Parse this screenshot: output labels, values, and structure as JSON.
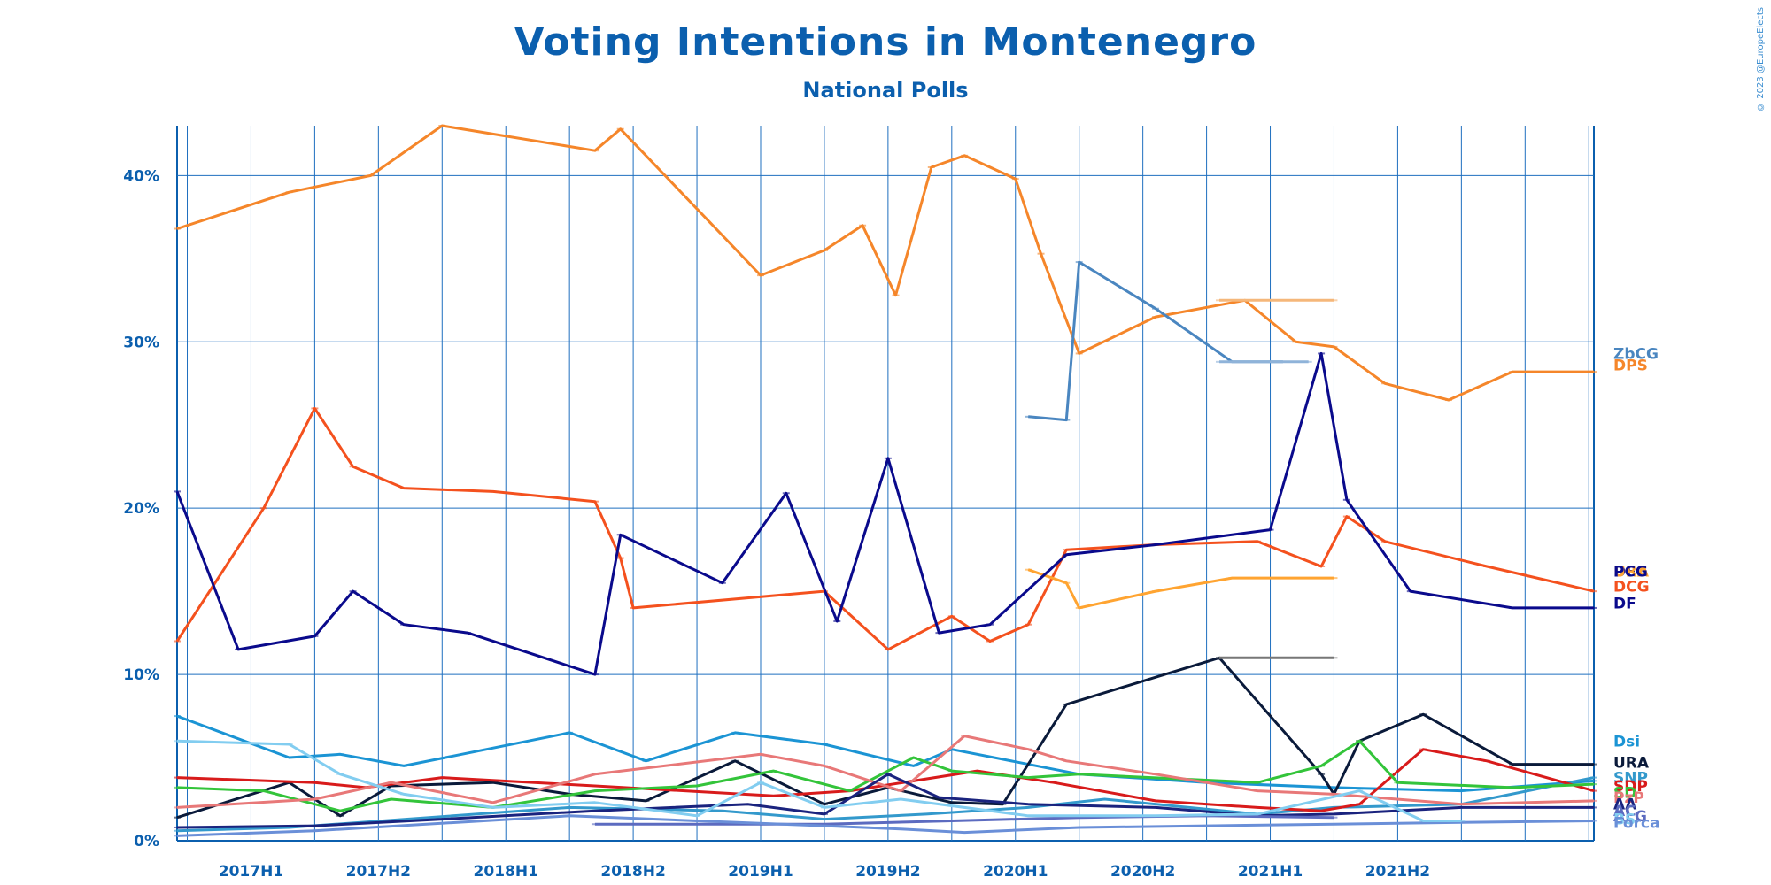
{
  "chart_data": {
    "type": "line",
    "title": "Voting Intentions in Montenegro",
    "subtitle": "National Polls",
    "credit": "© 2023 @EuropeElects",
    "ylim": [
      0,
      43
    ],
    "y_ticks": [
      0,
      10,
      20,
      30,
      40
    ],
    "y_tick_labels": [
      "0%",
      "10%",
      "20%",
      "30%",
      "40%"
    ],
    "xlim": [
      2016.96,
      2022.52
    ],
    "x_ticks": [
      {
        "x": 2017.0,
        "label": "2017H1"
      },
      {
        "x": 2017.5,
        "label": "2017H2"
      },
      {
        "x": 2018.0,
        "label": "2018H1"
      },
      {
        "x": 2018.5,
        "label": "2018H2"
      },
      {
        "x": 2019.0,
        "label": "2019H1"
      },
      {
        "x": 2019.5,
        "label": "2019H2"
      },
      {
        "x": 2020.0,
        "label": "2020H1"
      },
      {
        "x": 2020.5,
        "label": "2020H2"
      },
      {
        "x": 2021.0,
        "label": "2021H1"
      },
      {
        "x": 2021.5,
        "label": "2021H2"
      }
    ],
    "grid": true,
    "legend": "right",
    "series": [
      {
        "name": "DPS",
        "color": "#f5862a",
        "points": [
          [
            2016.96,
            36.8
          ],
          [
            2017.4,
            39.0
          ],
          [
            2017.72,
            40.0
          ],
          [
            2018.0,
            43.0
          ],
          [
            2018.6,
            41.5
          ],
          [
            2018.7,
            42.8
          ],
          [
            2019.25,
            34.0
          ],
          [
            2019.5,
            35.5
          ],
          [
            2019.65,
            37.0
          ],
          [
            2019.78,
            32.8
          ],
          [
            2019.92,
            40.5
          ],
          [
            2020.05,
            41.2
          ],
          [
            2020.25,
            39.8
          ],
          [
            2020.35,
            35.3
          ],
          [
            2020.5,
            29.3
          ],
          [
            2020.8,
            31.5
          ],
          [
            2021.15,
            32.5
          ],
          [
            2021.35,
            30.0
          ],
          [
            2021.5,
            29.7
          ],
          [
            2021.7,
            27.5
          ],
          [
            2021.95,
            26.5
          ],
          [
            2022.2,
            28.2
          ],
          [
            2022.52,
            28.2
          ]
        ]
      },
      {
        "name": "ZbCG",
        "color": "#4a86c0",
        "points": [
          [
            2020.3,
            25.5
          ],
          [
            2020.45,
            25.3
          ],
          [
            2020.5,
            34.8
          ],
          [
            2020.8,
            32.0
          ],
          [
            2021.1,
            28.8
          ],
          [
            2021.3,
            28.8
          ]
        ]
      },
      {
        "name": "DCG",
        "color": "#f4511e",
        "points": [
          [
            2016.96,
            12.0
          ],
          [
            2017.3,
            20.0
          ],
          [
            2017.5,
            26.0
          ],
          [
            2017.65,
            22.5
          ],
          [
            2017.85,
            21.2
          ],
          [
            2018.2,
            21.0
          ],
          [
            2018.6,
            20.4
          ],
          [
            2018.7,
            17.0
          ],
          [
            2018.75,
            14.0
          ],
          [
            2019.5,
            15.0
          ],
          [
            2019.75,
            11.5
          ],
          [
            2020.0,
            13.5
          ],
          [
            2020.15,
            12.0
          ],
          [
            2020.3,
            13.0
          ],
          [
            2020.45,
            17.5
          ],
          [
            2020.8,
            17.8
          ],
          [
            2021.2,
            18.0
          ],
          [
            2021.45,
            16.5
          ],
          [
            2021.55,
            19.5
          ],
          [
            2021.7,
            18.0
          ],
          [
            2022.1,
            16.5
          ],
          [
            2022.52,
            15.0
          ]
        ]
      },
      {
        "name": "URA/PCG",
        "color": "#ffa431",
        "points": [
          [
            2020.3,
            16.3
          ],
          [
            2020.45,
            15.5
          ],
          [
            2020.5,
            14.0
          ],
          [
            2020.8,
            15.0
          ],
          [
            2021.1,
            15.8
          ],
          [
            2021.5,
            15.8
          ]
        ]
      },
      {
        "name": "DF",
        "color": "#0a0a8c",
        "points": [
          [
            2016.96,
            21.0
          ],
          [
            2017.2,
            11.5
          ],
          [
            2017.5,
            12.3
          ],
          [
            2017.65,
            15.0
          ],
          [
            2017.85,
            13.0
          ],
          [
            2018.1,
            12.5
          ],
          [
            2018.6,
            10.0
          ],
          [
            2018.7,
            18.4
          ],
          [
            2019.1,
            15.5
          ],
          [
            2019.35,
            20.9
          ],
          [
            2019.55,
            13.2
          ],
          [
            2019.75,
            23.0
          ],
          [
            2019.95,
            12.5
          ],
          [
            2020.15,
            13.0
          ],
          [
            2020.45,
            17.2
          ],
          [
            2020.8,
            17.8
          ],
          [
            2021.25,
            18.7
          ],
          [
            2021.45,
            29.3
          ],
          [
            2021.55,
            20.5
          ],
          [
            2021.8,
            15.0
          ],
          [
            2022.2,
            14.0
          ],
          [
            2022.52,
            14.0
          ]
        ]
      },
      {
        "name": "Dsi",
        "color": "#1b94d4",
        "points": [
          [
            2016.96,
            7.5
          ],
          [
            2017.4,
            5.0
          ],
          [
            2017.6,
            5.2
          ],
          [
            2017.85,
            4.5
          ],
          [
            2018.5,
            6.5
          ],
          [
            2018.8,
            4.8
          ],
          [
            2019.15,
            6.5
          ],
          [
            2019.5,
            5.8
          ],
          [
            2019.85,
            4.5
          ],
          [
            2020.0,
            5.5
          ],
          [
            2020.5,
            4.0
          ],
          [
            2021.0,
            3.5
          ],
          [
            2021.5,
            3.2
          ],
          [
            2022.0,
            3.0
          ],
          [
            2022.52,
            3.6
          ]
        ]
      },
      {
        "name": "URA",
        "color": "#0a1a3a",
        "points": [
          [
            2016.96,
            1.4
          ],
          [
            2017.4,
            3.5
          ],
          [
            2017.6,
            1.5
          ],
          [
            2017.8,
            3.3
          ],
          [
            2018.2,
            3.5
          ],
          [
            2018.5,
            2.8
          ],
          [
            2018.8,
            2.4
          ],
          [
            2019.15,
            4.8
          ],
          [
            2019.5,
            2.2
          ],
          [
            2019.75,
            3.2
          ],
          [
            2020.0,
            2.3
          ],
          [
            2020.2,
            2.2
          ],
          [
            2020.45,
            8.2
          ],
          [
            2021.05,
            11.0
          ],
          [
            2021.45,
            4.0
          ],
          [
            2021.5,
            2.8
          ],
          [
            2021.6,
            6.0
          ],
          [
            2021.85,
            7.6
          ],
          [
            2022.2,
            4.6
          ],
          [
            2022.52,
            4.6
          ]
        ]
      },
      {
        "name": "SNP",
        "color": "#3399cc",
        "points": [
          [
            2016.96,
            0.6
          ],
          [
            2017.4,
            0.8
          ],
          [
            2018.5,
            2.0
          ],
          [
            2019.1,
            1.8
          ],
          [
            2019.5,
            1.3
          ],
          [
            2019.9,
            1.6
          ],
          [
            2020.3,
            2.0
          ],
          [
            2020.6,
            2.5
          ],
          [
            2021.2,
            1.6
          ],
          [
            2021.5,
            2.0
          ],
          [
            2022.0,
            2.2
          ],
          [
            2022.52,
            3.8
          ]
        ]
      },
      {
        "name": "SDP",
        "color": "#d81b1b",
        "points": [
          [
            2016.96,
            3.8
          ],
          [
            2017.5,
            3.5
          ],
          [
            2017.7,
            3.2
          ],
          [
            2018.0,
            3.8
          ],
          [
            2018.6,
            3.3
          ],
          [
            2019.3,
            2.7
          ],
          [
            2019.6,
            3.0
          ],
          [
            2020.1,
            4.2
          ],
          [
            2020.4,
            3.5
          ],
          [
            2020.8,
            2.4
          ],
          [
            2021.2,
            2.0
          ],
          [
            2021.45,
            1.8
          ],
          [
            2021.6,
            2.2
          ],
          [
            2021.85,
            5.5
          ],
          [
            2022.1,
            4.8
          ],
          [
            2022.52,
            3.0
          ]
        ]
      },
      {
        "name": "SD",
        "color": "#33c43a",
        "points": [
          [
            2016.96,
            3.2
          ],
          [
            2017.3,
            3.0
          ],
          [
            2017.6,
            1.8
          ],
          [
            2017.8,
            2.5
          ],
          [
            2018.2,
            2.0
          ],
          [
            2018.6,
            3.0
          ],
          [
            2019.0,
            3.3
          ],
          [
            2019.3,
            4.2
          ],
          [
            2019.6,
            3.0
          ],
          [
            2019.85,
            5.0
          ],
          [
            2020.0,
            4.2
          ],
          [
            2020.3,
            3.8
          ],
          [
            2020.5,
            4.0
          ],
          [
            2021.2,
            3.5
          ],
          [
            2021.45,
            4.5
          ],
          [
            2021.6,
            6.0
          ],
          [
            2021.75,
            3.5
          ],
          [
            2022.2,
            3.2
          ],
          [
            2022.52,
            3.4
          ]
        ]
      },
      {
        "name": "PzP",
        "color": "#e87878",
        "points": [
          [
            2016.96,
            2.0
          ],
          [
            2017.5,
            2.5
          ],
          [
            2017.8,
            3.5
          ],
          [
            2018.2,
            2.3
          ],
          [
            2018.6,
            4.0
          ],
          [
            2019.25,
            5.2
          ],
          [
            2019.5,
            4.5
          ],
          [
            2019.8,
            3.0
          ],
          [
            2020.05,
            6.3
          ],
          [
            2020.3,
            5.5
          ],
          [
            2020.45,
            4.8
          ],
          [
            2020.8,
            4.0
          ],
          [
            2021.2,
            3.0
          ],
          [
            2021.5,
            2.8
          ],
          [
            2022.0,
            2.2
          ],
          [
            2022.52,
            2.4
          ]
        ]
      },
      {
        "name": "AA",
        "color": "#1a237e",
        "points": [
          [
            2016.96,
            0.8
          ],
          [
            2017.5,
            0.9
          ],
          [
            2018.0,
            1.3
          ],
          [
            2018.6,
            1.8
          ],
          [
            2019.2,
            2.2
          ],
          [
            2019.5,
            1.6
          ],
          [
            2019.75,
            4.0
          ],
          [
            2019.95,
            2.6
          ],
          [
            2020.3,
            2.2
          ],
          [
            2020.8,
            2.0
          ],
          [
            2021.2,
            1.5
          ],
          [
            2021.5,
            1.6
          ],
          [
            2022.0,
            2.0
          ],
          [
            2022.52,
            2.0
          ]
        ]
      },
      {
        "name": "ALG",
        "color": "#5c6bc0",
        "points": [
          [
            2018.6,
            1.0
          ],
          [
            2019.0,
            1.0
          ],
          [
            2019.5,
            1.0
          ],
          [
            2020.0,
            1.2
          ],
          [
            2020.5,
            1.4
          ],
          [
            2021.0,
            1.5
          ],
          [
            2021.5,
            1.4
          ]
        ]
      },
      {
        "name": "Forca",
        "color": "#6a8fd8",
        "points": [
          [
            2016.96,
            0.3
          ],
          [
            2017.5,
            0.6
          ],
          [
            2018.5,
            1.5
          ],
          [
            2019.0,
            1.2
          ],
          [
            2019.5,
            0.9
          ],
          [
            2019.8,
            0.7
          ],
          [
            2020.05,
            0.5
          ],
          [
            2020.5,
            0.8
          ],
          [
            2021.0,
            0.9
          ],
          [
            2021.5,
            1.0
          ],
          [
            2022.0,
            1.1
          ],
          [
            2022.52,
            1.2
          ]
        ]
      },
      {
        "name": "BS",
        "color": "#82cdf0",
        "points": [
          [
            2016.96,
            6.0
          ],
          [
            2017.4,
            5.8
          ],
          [
            2017.6,
            4.0
          ],
          [
            2017.85,
            2.8
          ],
          [
            2018.2,
            2.0
          ],
          [
            2018.6,
            2.3
          ],
          [
            2019.0,
            1.5
          ],
          [
            2019.25,
            3.5
          ],
          [
            2019.5,
            2.0
          ],
          [
            2019.8,
            2.5
          ],
          [
            2020.3,
            1.5
          ],
          [
            2020.8,
            1.5
          ],
          [
            2021.2,
            1.6
          ],
          [
            2021.6,
            3.0
          ],
          [
            2021.85,
            1.2
          ],
          [
            2022.0,
            1.2
          ]
        ]
      },
      {
        "name": "",
        "color": "#777777",
        "points": [
          [
            2021.05,
            11.0
          ],
          [
            2021.5,
            11.0
          ]
        ]
      },
      {
        "name": "",
        "color": "#f5b77a",
        "points": [
          [
            2021.05,
            32.5
          ],
          [
            2021.5,
            32.5
          ]
        ]
      },
      {
        "name": "",
        "color": "#8fb3d9",
        "points": [
          [
            2021.05,
            28.8
          ],
          [
            2021.4,
            28.8
          ]
        ]
      }
    ],
    "legend_labels": [
      {
        "text": "ZbCG",
        "value": 29.3,
        "color": "#4a86c0"
      },
      {
        "text": "DPS",
        "value": 28.6,
        "color": "#f5862a"
      },
      {
        "text": "DF",
        "value": 16.2,
        "color": "#0a0a8c"
      },
      {
        "text": "URA",
        "value": 16.2,
        "color": "#ffa431"
      },
      {
        "text": "PCG",
        "value": 16.2,
        "color": "#0a0a8c"
      },
      {
        "text": "DCG",
        "value": 15.3,
        "color": "#f4511e"
      },
      {
        "text": "DF",
        "value": 14.3,
        "color": "#0a0a8c"
      },
      {
        "text": "Dsi",
        "value": 6.0,
        "color": "#1b94d4"
      },
      {
        "text": "URA",
        "value": 4.7,
        "color": "#0a1a3a"
      },
      {
        "text": "SNP",
        "value": 3.8,
        "color": "#3399cc"
      },
      {
        "text": "SDP",
        "value": 3.3,
        "color": "#d81b1b"
      },
      {
        "text": "SD",
        "value": 2.9,
        "color": "#33c43a"
      },
      {
        "text": "PzP",
        "value": 2.6,
        "color": "#e87878"
      },
      {
        "text": "AA",
        "value": 2.2,
        "color": "#1a237e"
      },
      {
        "text": "AC",
        "value": 1.8,
        "color": "#5c6bc0"
      },
      {
        "text": "ALG",
        "value": 1.5,
        "color": "#5c6bc0"
      },
      {
        "text": "BS",
        "value": 1.3,
        "color": "#82cdf0"
      },
      {
        "text": "Forca",
        "value": 1.1,
        "color": "#6a8fd8"
      }
    ]
  }
}
